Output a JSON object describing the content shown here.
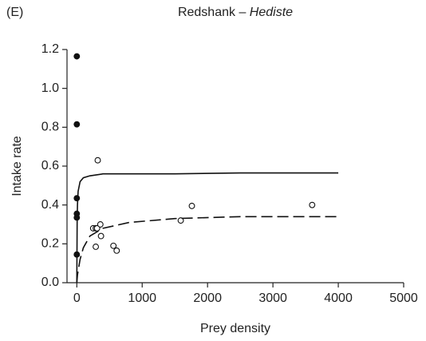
{
  "chart_data": {
    "type": "scatter",
    "panel_label": "(E)",
    "title": "Redshank – ",
    "title_taxon": "Hediste",
    "x_label": "Prey density",
    "y_label": "Intake rate",
    "xlim": [
      -150,
      5000
    ],
    "ylim": [
      0,
      1.2
    ],
    "xticks": [
      0,
      1000,
      2000,
      3000,
      4000,
      5000
    ],
    "yticks": [
      {
        "value": 0,
        "label": "0.0"
      },
      0.2,
      0.4,
      0.6,
      0.8,
      {
        "value": 1,
        "label": "1.0"
      },
      1.2
    ],
    "color": "#111111",
    "series": [
      {
        "marker": "filled",
        "x": [
          0,
          0,
          0,
          0,
          0,
          0
        ],
        "values": [
          1.165,
          0.815,
          0.435,
          0.355,
          0.335,
          0.145
        ]
      },
      {
        "marker": "open",
        "x": [
          320,
          250,
          290,
          310,
          290,
          360,
          370,
          560,
          610,
          1590,
          1760,
          3600
        ],
        "values": [
          0.63,
          0.28,
          0.28,
          0.28,
          0.185,
          0.3,
          0.24,
          0.19,
          0.165,
          0.32,
          0.395,
          0.4
        ]
      },
      {
        "line": "solid",
        "x": [
          0,
          5,
          10,
          20,
          50,
          100,
          200,
          400,
          800,
          1500,
          2500,
          4000
        ],
        "values": [
          0,
          0.31,
          0.4,
          0.47,
          0.52,
          0.54,
          0.55,
          0.56,
          0.56,
          0.56,
          0.565,
          0.565
        ]
      },
      {
        "line": "dashed",
        "x": [
          0,
          5,
          10,
          20,
          50,
          100,
          200,
          400,
          800,
          1500,
          2500,
          4000
        ],
        "values": [
          0,
          0.02,
          0.04,
          0.06,
          0.12,
          0.18,
          0.24,
          0.28,
          0.31,
          0.33,
          0.34,
          0.34
        ]
      }
    ]
  }
}
